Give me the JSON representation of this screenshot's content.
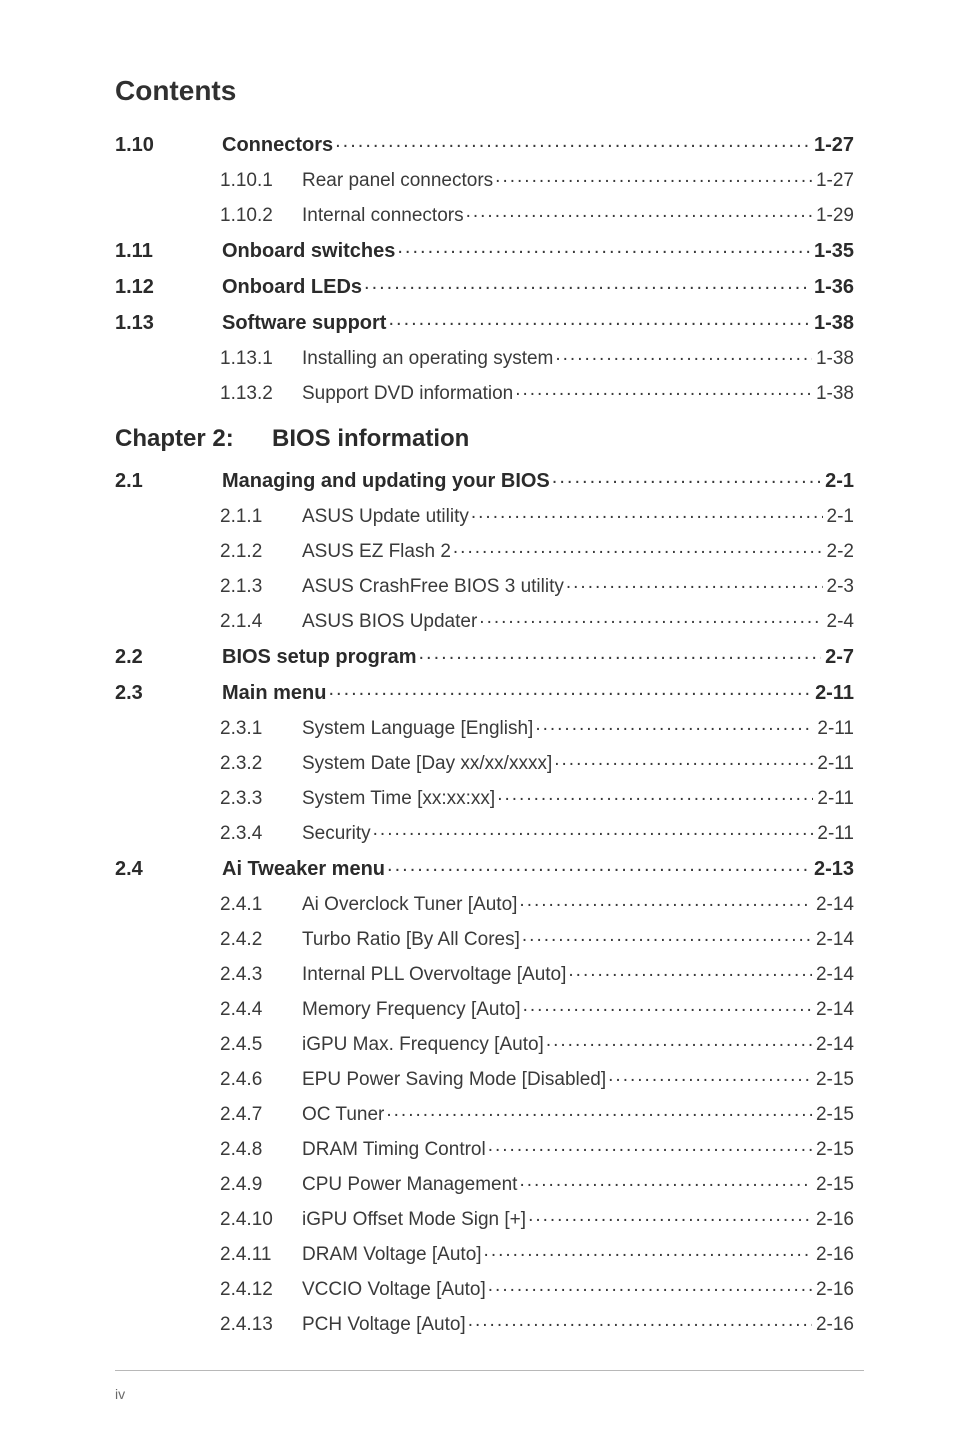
{
  "page": {
    "title": "Contents",
    "footer_page": "iv",
    "colors": {
      "text": "#3a3a3a",
      "bold_text": "#2b2b2b",
      "background": "#ffffff",
      "rule": "#b8b8b8",
      "footer_text": "#6a6a6a"
    },
    "font_sizes_pt": {
      "title": 21,
      "chapter": 18,
      "section_bold": 15,
      "normal": 14,
      "footer": 11
    }
  },
  "toc": [
    {
      "type": "section",
      "num": "1.10",
      "title": "Connectors",
      "page": "1-27"
    },
    {
      "type": "sub",
      "num": "1.10.1",
      "title": "Rear panel connectors",
      "page": "1-27"
    },
    {
      "type": "sub",
      "num": "1.10.2",
      "title": "Internal connectors",
      "page": "1-29"
    },
    {
      "type": "section",
      "num": "1.11",
      "title": "Onboard switches",
      "page": "1-35"
    },
    {
      "type": "section",
      "num": "1.12",
      "title": "Onboard LEDs",
      "page": "1-36"
    },
    {
      "type": "section",
      "num": "1.13",
      "title": "Software support",
      "page": "1-38"
    },
    {
      "type": "sub",
      "num": "1.13.1",
      "title": "Installing an operating system",
      "page": "1-38"
    },
    {
      "type": "sub",
      "num": "1.13.2",
      "title": "Support DVD information",
      "page": "1-38"
    },
    {
      "type": "chapter",
      "num": "Chapter 2:",
      "title": "BIOS information",
      "page": ""
    },
    {
      "type": "section",
      "num": "2.1",
      "title": "Managing and updating your BIOS",
      "page": "2-1"
    },
    {
      "type": "sub",
      "num": "2.1.1",
      "title": "ASUS Update utility",
      "page": "2-1"
    },
    {
      "type": "sub",
      "num": "2.1.2",
      "title": "ASUS EZ Flash 2",
      "page": "2-2"
    },
    {
      "type": "sub",
      "num": "2.1.3",
      "title": "ASUS CrashFree BIOS 3 utility",
      "page": "2-3"
    },
    {
      "type": "sub",
      "num": "2.1.4",
      "title": "ASUS BIOS Updater",
      "page": "2-4"
    },
    {
      "type": "section",
      "num": "2.2",
      "title": "BIOS setup program",
      "page": "2-7"
    },
    {
      "type": "section",
      "num": "2.3",
      "title": "Main menu",
      "page": "2-11"
    },
    {
      "type": "sub",
      "num": "2.3.1",
      "title": "System Language [English]",
      "page": "2-11"
    },
    {
      "type": "sub",
      "num": "2.3.2",
      "title": "System Date [Day xx/xx/xxxx]",
      "page": "2-11"
    },
    {
      "type": "sub",
      "num": "2.3.3",
      "title": "System Time [xx:xx:xx]",
      "page": "2-11"
    },
    {
      "type": "sub",
      "num": "2.3.4",
      "title": "Security",
      "page": "2-11"
    },
    {
      "type": "section",
      "num": "2.4",
      "title": "Ai Tweaker menu",
      "page": "2-13"
    },
    {
      "type": "sub",
      "num": "2.4.1",
      "title": "Ai Overclock Tuner [Auto]",
      "page": "2-14"
    },
    {
      "type": "sub",
      "num": "2.4.2",
      "title": "Turbo Ratio [By All Cores]",
      "page": "2-14"
    },
    {
      "type": "sub",
      "num": "2.4.3",
      "title": "Internal PLL Overvoltage [Auto]",
      "page": "2-14"
    },
    {
      "type": "sub",
      "num": "2.4.4",
      "title": "Memory Frequency [Auto]",
      "page": "2-14"
    },
    {
      "type": "sub",
      "num": "2.4.5",
      "title": "iGPU Max. Frequency [Auto]",
      "page": "2-14"
    },
    {
      "type": "sub",
      "num": "2.4.6",
      "title": "EPU Power Saving Mode [Disabled]",
      "page": "2-15"
    },
    {
      "type": "sub",
      "num": "2.4.7",
      "title": "OC Tuner",
      "page": "2-15"
    },
    {
      "type": "sub",
      "num": "2.4.8",
      "title": "DRAM Timing Control",
      "page": "2-15"
    },
    {
      "type": "sub",
      "num": "2.4.9",
      "title": "CPU Power Management",
      "page": "2-15"
    },
    {
      "type": "sub",
      "num": "2.4.10",
      "title": "iGPU Offset Mode Sign [+]",
      "page": "2-16"
    },
    {
      "type": "sub",
      "num": "2.4.11",
      "title": "DRAM Voltage [Auto]",
      "page": "2-16"
    },
    {
      "type": "sub",
      "num": "2.4.12",
      "title": "VCCIO Voltage [Auto]",
      "page": "2-16"
    },
    {
      "type": "sub",
      "num": "2.4.13",
      "title": "PCH Voltage [Auto]",
      "page": "2-16"
    }
  ]
}
